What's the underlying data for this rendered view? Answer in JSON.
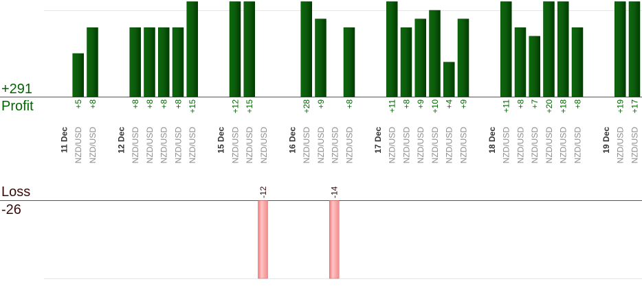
{
  "labels": {
    "profit_total": "+291",
    "profit": "Profit",
    "loss": "Loss",
    "loss_total": "-26"
  },
  "colors": {
    "profit_bar": "#0b5e0b",
    "profit_bar_edge": "#003a00",
    "profit_text": "#006400",
    "loss_bar": "#ffb3b3",
    "loss_bar_edge": "#e06060",
    "loss_text": "#3a0a0a",
    "pair_text": "#8c8c8c",
    "date_text": "#333333",
    "axis": "#555555",
    "grid": "#e6e6e6"
  },
  "chart_data": {
    "type": "bar",
    "profit_scale_max": 11,
    "loss_scale_max": 14,
    "columns": [
      {
        "date": "11 Dec"
      },
      {
        "pair": "NZD/USD",
        "value": 5,
        "label": "+5"
      },
      {
        "pair": "NZD/USD",
        "value": 8,
        "label": "+8"
      },
      {
        "gap": true
      },
      {
        "date": "12 Dec"
      },
      {
        "pair": "NZD/USD",
        "value": 8,
        "label": "+8"
      },
      {
        "pair": "NZD/USD",
        "value": 8,
        "label": "+8"
      },
      {
        "pair": "NZD/USD",
        "value": 8,
        "label": "+8"
      },
      {
        "pair": "NZD/USD",
        "value": 8,
        "label": "+8"
      },
      {
        "pair": "NZD/USD",
        "value": 15,
        "label": "+15"
      },
      {
        "gap": true
      },
      {
        "date": "15 Dec"
      },
      {
        "pair": "NZD/USD",
        "value": 12,
        "label": "+12"
      },
      {
        "pair": "NZD/USD",
        "value": 15,
        "label": "+15"
      },
      {
        "pair": "NZD/USD",
        "value": -12,
        "label": "-12"
      },
      {
        "gap": true
      },
      {
        "date": "16 Dec"
      },
      {
        "pair": "NZD/USD",
        "value": 28,
        "label": "+28"
      },
      {
        "pair": "NZD/USD",
        "value": 9,
        "label": "+9"
      },
      {
        "pair": "NZD/USD",
        "value": -14,
        "label": "-14"
      },
      {
        "pair": "NZD/USD",
        "value": 8,
        "label": "+8"
      },
      {
        "gap": true
      },
      {
        "date": "17 Dec"
      },
      {
        "pair": "NZD/USD",
        "value": 11,
        "label": "+11"
      },
      {
        "pair": "NZD/USD",
        "value": 8,
        "label": "+8"
      },
      {
        "pair": "NZD/USD",
        "value": 9,
        "label": "+9"
      },
      {
        "pair": "NZD/USD",
        "value": 10,
        "label": "+10"
      },
      {
        "pair": "NZD/USD",
        "value": 4,
        "label": "+4"
      },
      {
        "pair": "NZD/USD",
        "value": 9,
        "label": "+9"
      },
      {
        "gap": true
      },
      {
        "date": "18 Dec"
      },
      {
        "pair": "NZD/USD",
        "value": 11,
        "label": "+11"
      },
      {
        "pair": "NZD/USD",
        "value": 8,
        "label": "+8"
      },
      {
        "pair": "NZD/USD",
        "value": 7,
        "label": "+7"
      },
      {
        "pair": "NZD/USD",
        "value": 20,
        "label": "+20"
      },
      {
        "pair": "NZD/USD",
        "value": 18,
        "label": "+18"
      },
      {
        "pair": "NZD/USD",
        "value": 8,
        "label": "+8"
      },
      {
        "gap": true
      },
      {
        "date": "19 Dec"
      },
      {
        "pair": "NZD/USD",
        "value": 19,
        "label": "+19"
      },
      {
        "pair": "NZD/USD",
        "value": 17,
        "label": "+17"
      }
    ]
  }
}
